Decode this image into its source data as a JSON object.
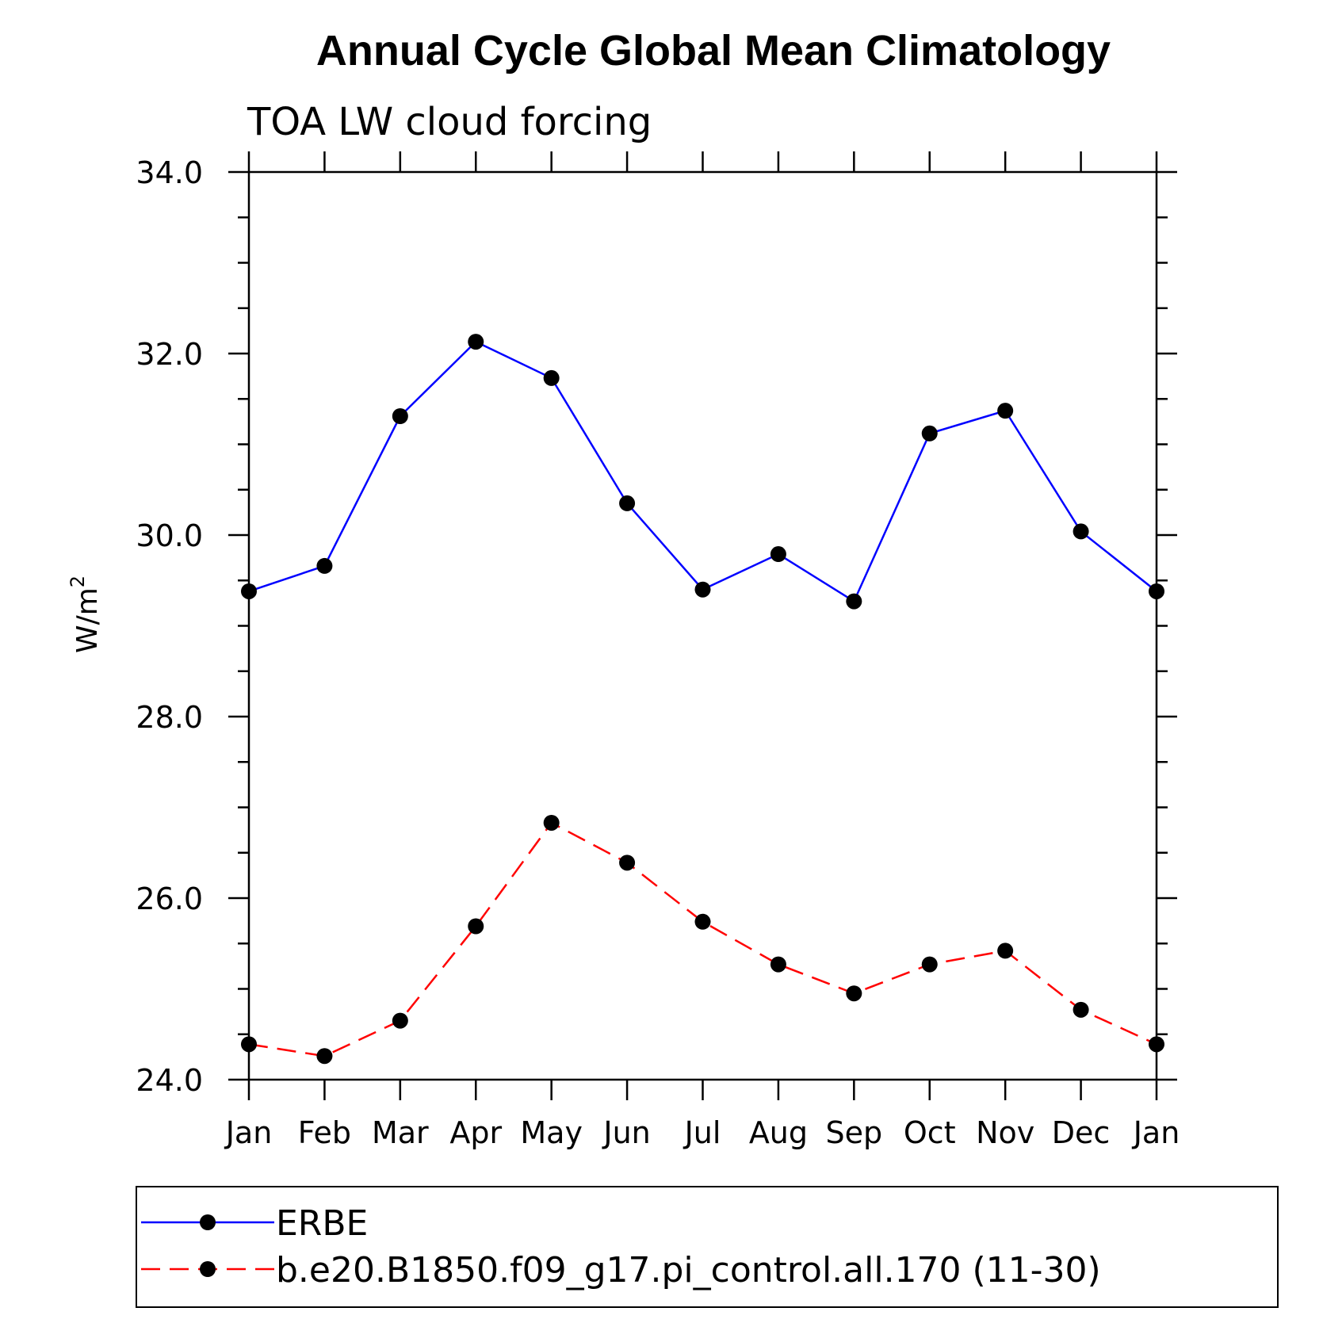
{
  "chart_data": {
    "type": "line",
    "title": "Annual Cycle Global Mean Climatology",
    "subtitle": "TOA LW cloud forcing",
    "ylabel": "W/m",
    "ylabel_superscript": "2",
    "xlabel": "",
    "categories": [
      "Jan",
      "Feb",
      "Mar",
      "Apr",
      "May",
      "Jun",
      "Jul",
      "Aug",
      "Sep",
      "Oct",
      "Nov",
      "Dec",
      "Jan"
    ],
    "ylim": [
      24.0,
      34.0
    ],
    "yticks": [
      "24.0",
      "26.0",
      "28.0",
      "30.0",
      "32.0",
      "34.0"
    ],
    "grid": false,
    "legend_position": "bottom",
    "series": [
      {
        "name": "ERBE",
        "color": "#0000ff",
        "style": "solid",
        "marker": "filled-circle",
        "values": [
          29.38,
          29.66,
          31.31,
          32.13,
          31.73,
          30.35,
          29.4,
          29.79,
          29.27,
          31.12,
          31.37,
          30.04,
          29.38
        ]
      },
      {
        "name": "b.e20.B1850.f09_g17.pi_control.all.170 (11-30)",
        "color": "#ff0000",
        "style": "dashed",
        "marker": "filled-circle",
        "values": [
          24.39,
          24.26,
          24.65,
          25.69,
          26.83,
          26.39,
          25.74,
          25.27,
          24.95,
          25.27,
          25.42,
          24.77,
          24.39
        ]
      }
    ]
  }
}
